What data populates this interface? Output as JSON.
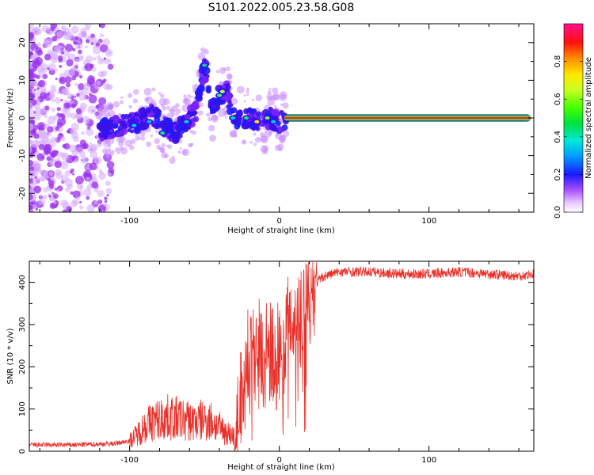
{
  "title": "S101.2022.005.23.58.G08",
  "chart_data": [
    {
      "type": "heatmap",
      "xlabel": "Height of straight line (km)",
      "ylabel": "Frequency (Hz)",
      "xlim": [
        -167,
        170
      ],
      "ylim": [
        -25,
        25
      ],
      "xticks": [
        -100,
        0,
        100
      ],
      "yticks": [
        -20,
        -10,
        0,
        10,
        20
      ],
      "colorbar": {
        "label": "Normalized spectral amplitude",
        "range": [
          0,
          1
        ],
        "ticks": [
          "0.0",
          "0.2",
          "0.4",
          "0.6",
          "0.8"
        ],
        "colormap": "gist_ncar"
      },
      "ridge": {
        "x": [
          -165,
          -140,
          -115,
          -105,
          -95,
          -85,
          -78,
          -70,
          -62,
          -55,
          -50,
          -45,
          -40,
          -35,
          -30,
          -25,
          -20,
          -15,
          -10,
          -5,
          0,
          20,
          60,
          100,
          140,
          170
        ],
        "y": [
          -6,
          -5,
          -3,
          -2,
          -1,
          1,
          -2,
          -4,
          -1,
          2,
          14,
          2,
          6,
          7,
          0,
          0,
          0,
          -1,
          -1,
          0,
          -1,
          0,
          0,
          0,
          0,
          0
        ]
      }
    },
    {
      "type": "line",
      "xlabel": "Height of straight line (km)",
      "ylabel": "SNR (10 * v/v)",
      "xlim": [
        -167,
        170
      ],
      "ylim": [
        0,
        450
      ],
      "xticks": [
        -100,
        0,
        100
      ],
      "yticks": [
        0,
        100,
        200,
        300,
        400
      ],
      "color": "#e8302a",
      "series": [
        {
          "x": [
            -167,
            -140,
            -110,
            -100,
            -95,
            -90,
            -85,
            -80,
            -75,
            -70,
            -65,
            -60,
            -55,
            -50,
            -45,
            -40,
            -35,
            -30,
            -28,
            -25,
            -22,
            -20,
            -15,
            -10,
            -5,
            0,
            5,
            10,
            15,
            20,
            25,
            30,
            40,
            60,
            80,
            100,
            120,
            140,
            160,
            170
          ],
          "y": [
            15,
            15,
            18,
            25,
            40,
            60,
            70,
            75,
            80,
            78,
            75,
            72,
            70,
            75,
            70,
            55,
            45,
            35,
            60,
            150,
            200,
            240,
            260,
            250,
            230,
            250,
            300,
            330,
            350,
            370,
            400,
            415,
            425,
            425,
            420,
            420,
            425,
            420,
            415,
            420
          ]
        }
      ]
    }
  ]
}
